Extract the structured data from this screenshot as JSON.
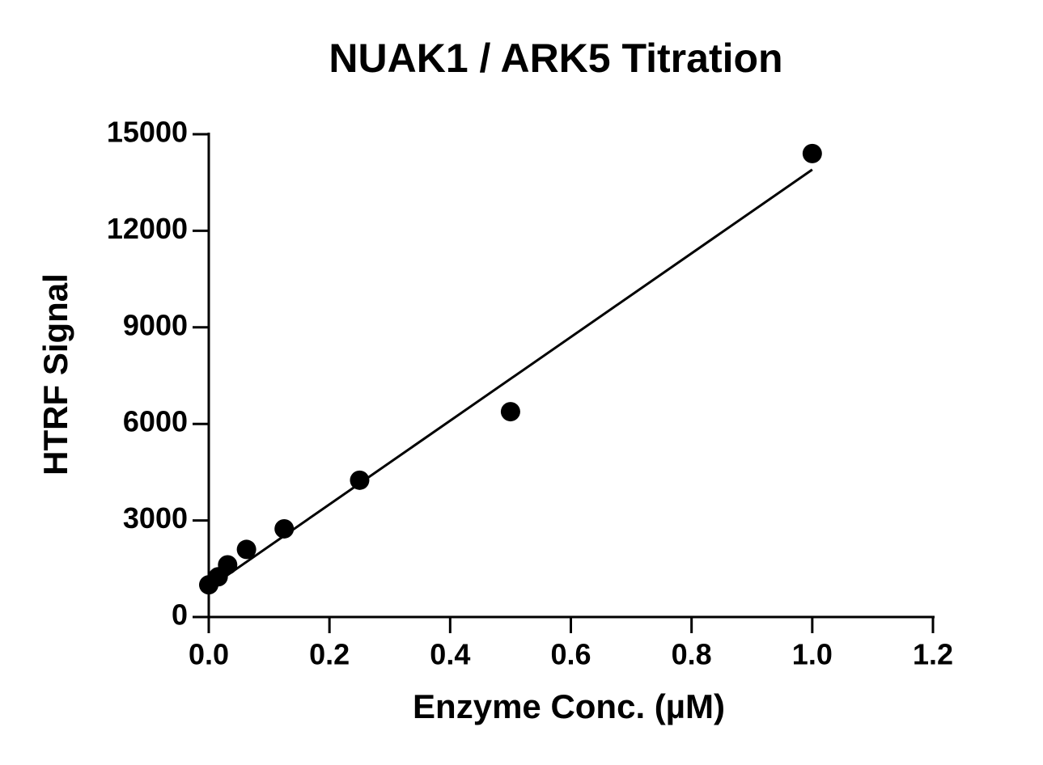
{
  "chart_data": {
    "type": "scatter",
    "title": "NUAK1 / ARK5 Titration",
    "x_label": "Enzyme Conc. (µM)",
    "y_label": "HTRF Signal",
    "x": [
      0,
      0.0156,
      0.03125,
      0.0625,
      0.125,
      0.25,
      0.5,
      1.0
    ],
    "values": [
      1000,
      1250,
      1620,
      2100,
      2740,
      4250,
      6380,
      14400
    ],
    "color": "#000000",
    "fit_line": {
      "x": [
        0,
        1.0
      ],
      "values": [
        900,
        13900
      ]
    },
    "xlim": [
      0,
      1.2
    ],
    "xticks": [
      {
        "value": 0,
        "label": "0.0"
      },
      0.2,
      0.4,
      0.6,
      0.8,
      {
        "value": 1,
        "label": "1.0"
      },
      1.2
    ],
    "ylim": [
      0,
      15000
    ],
    "yticks": [
      0,
      3000,
      6000,
      9000,
      12000,
      15000
    ]
  }
}
